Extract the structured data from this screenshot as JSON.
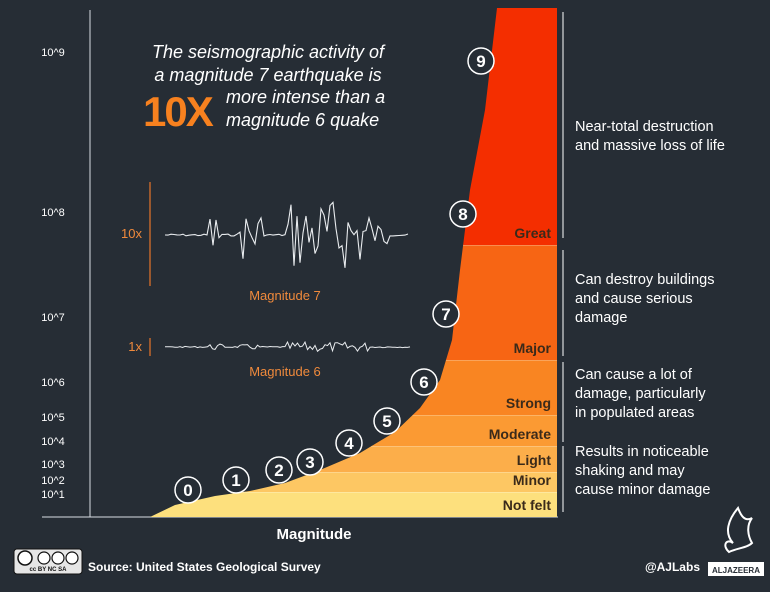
{
  "headline": {
    "line1": "The seismographic activity of",
    "line2": "a magnitude 7 earthquake is",
    "multiplier": "10X",
    "line3": "more intense than a",
    "line4": "magnitude 6 quake"
  },
  "waves": {
    "big": {
      "factor": "10x",
      "label": "Magnitude 7"
    },
    "small": {
      "factor": "1x",
      "label": "Magnitude 6"
    }
  },
  "chart_data": {
    "type": "area",
    "xlabel": "Magnitude",
    "ylabel": "",
    "y_tick_labels": [
      "10^1",
      "10^2",
      "10^3",
      "10^4",
      "10^5",
      "10^6",
      "10^7",
      "10^8",
      "10^9"
    ],
    "markers": [
      "0",
      "1",
      "2",
      "3",
      "4",
      "5",
      "6",
      "7",
      "8",
      "9"
    ],
    "bands": [
      {
        "name": "Not felt",
        "color": "#fde07d"
      },
      {
        "name": "Minor",
        "color": "#fdc763"
      },
      {
        "name": "Light",
        "color": "#fcae4a"
      },
      {
        "name": "Moderate",
        "color": "#fb9a33"
      },
      {
        "name": "Strong",
        "color": "#f98522"
      },
      {
        "name": "Major",
        "color": "#f76514"
      },
      {
        "name": "Great",
        "color": "#f5460a"
      }
    ],
    "top_band_color": "#f42e00",
    "descriptions": [
      {
        "line1": "Near-total destruction",
        "line2": "and massive loss of life",
        "line3": ""
      },
      {
        "line1": "Can destroy buildings",
        "line2": "and cause serious",
        "line3": "damage"
      },
      {
        "line1": "Can cause a lot of",
        "line2": "damage, particularly",
        "line3": "in populated areas"
      },
      {
        "line1": "Results in noticeable",
        "line2": "shaking and may",
        "line3": "cause minor damage"
      }
    ]
  },
  "footer": {
    "license": "cc BY NC SA",
    "source": "Source: United States Geological Survey",
    "handle": "@AJLabs",
    "brand": "ALJAZEERA"
  }
}
